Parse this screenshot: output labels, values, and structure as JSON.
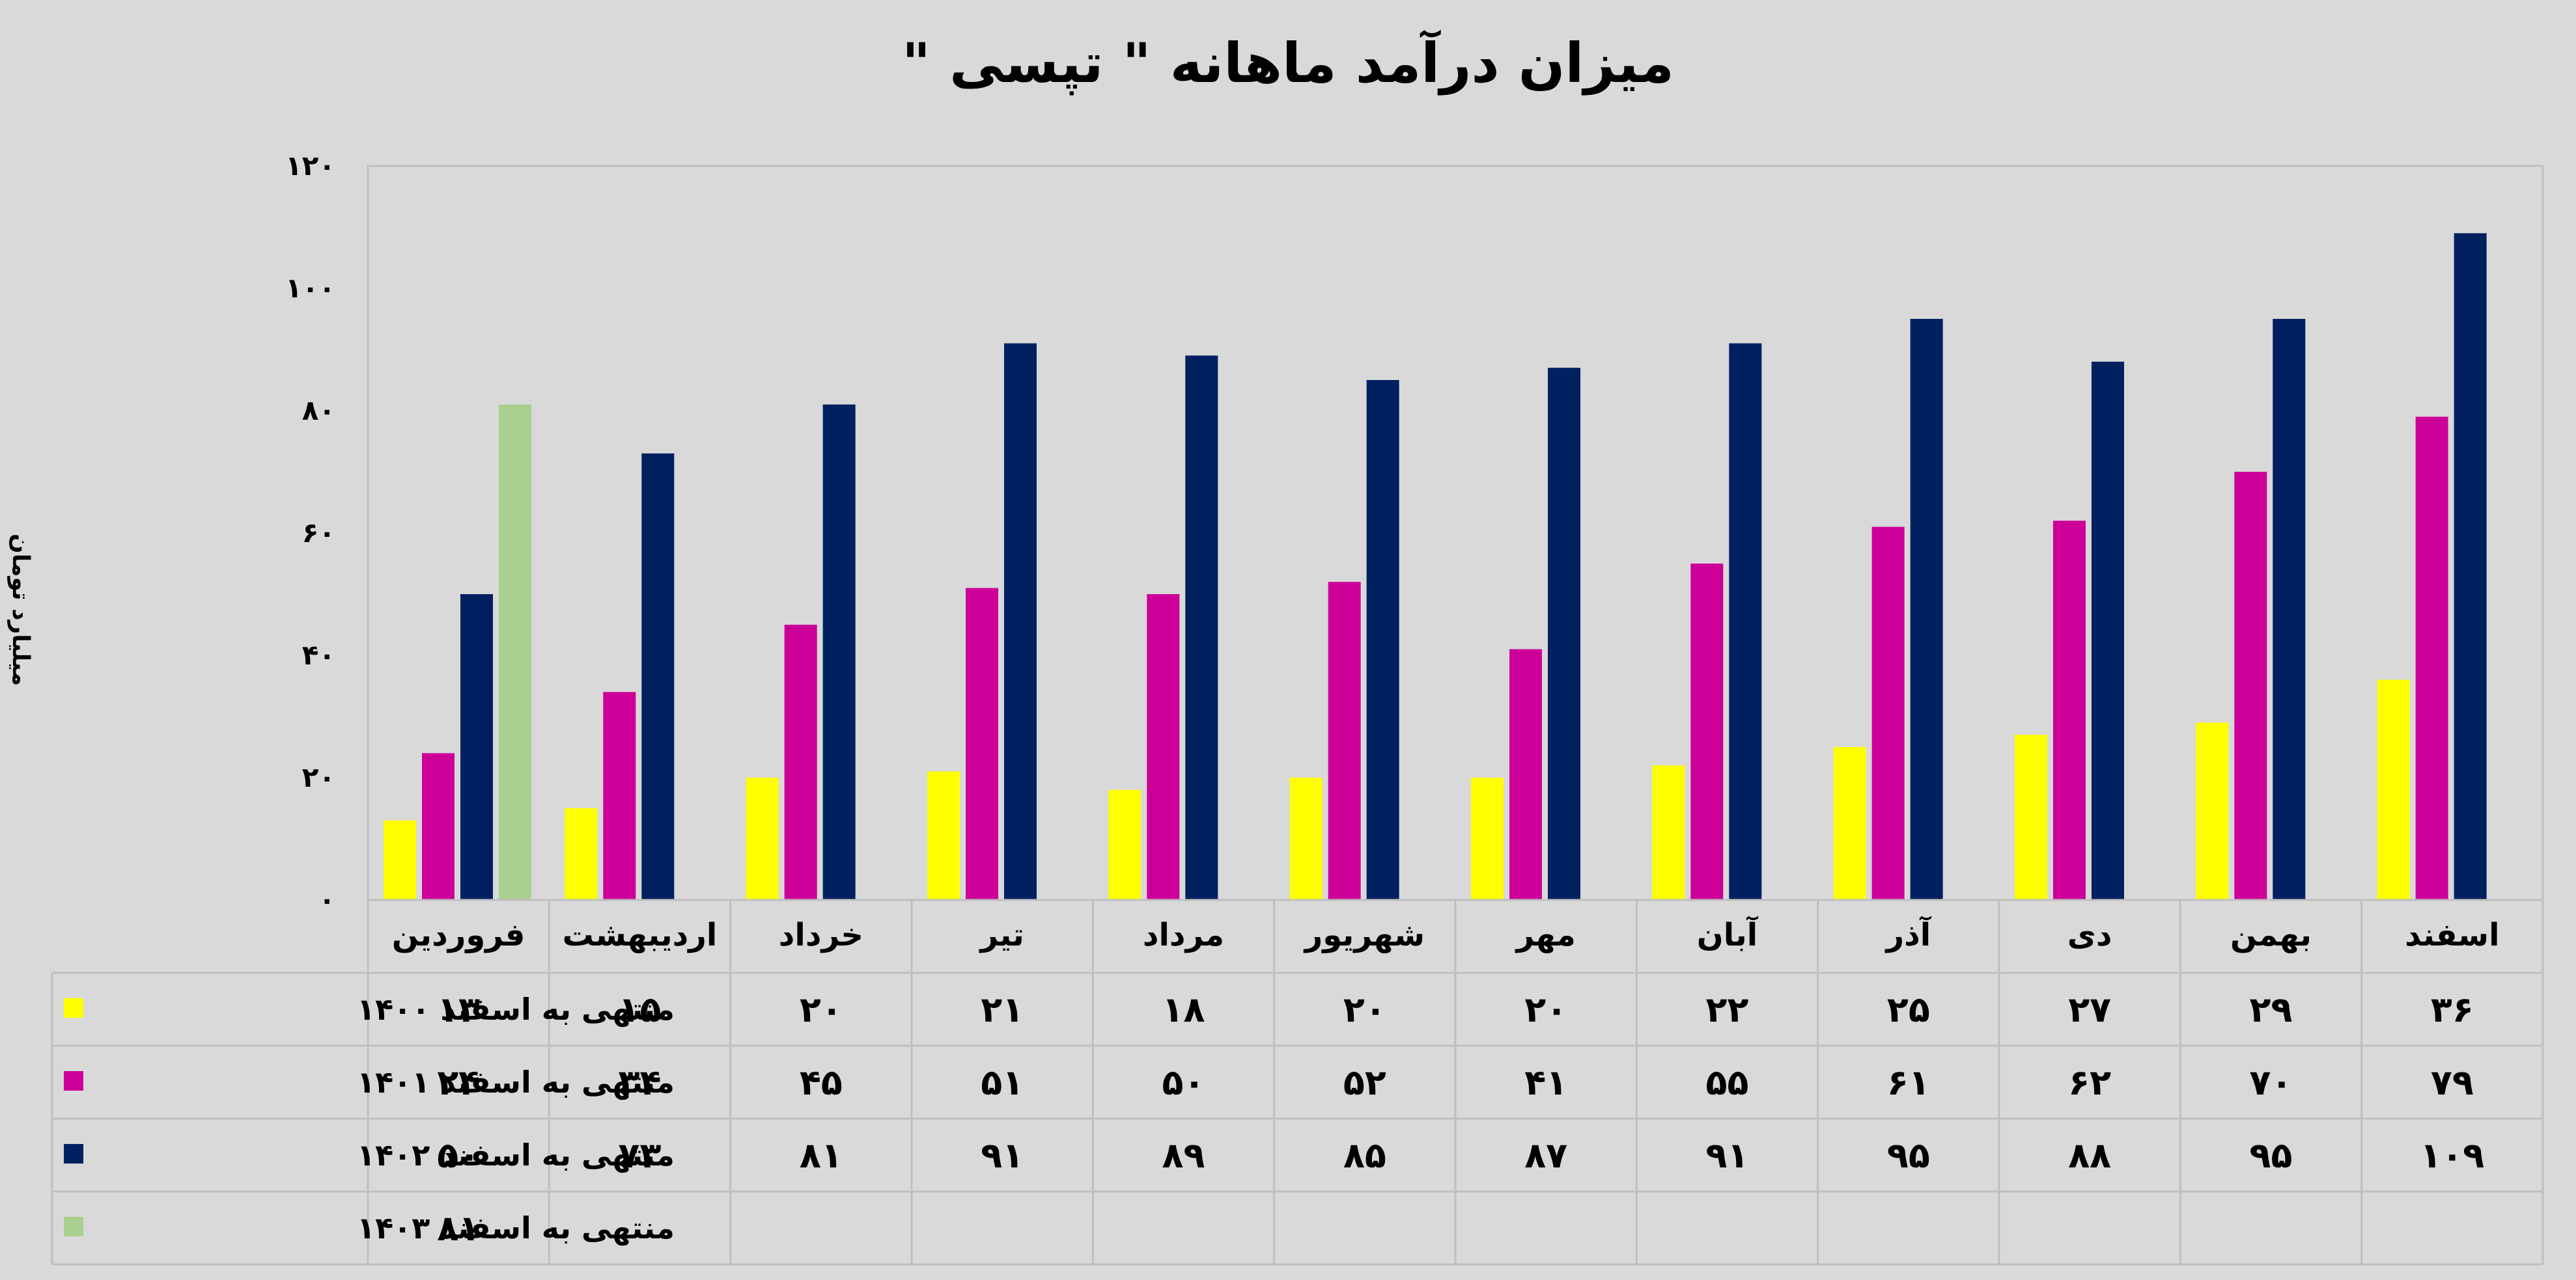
{
  "chart_data": {
    "type": "bar",
    "title": "میزان درآمد ماهانه \" تپسی \"",
    "ylabel": "میلیارد تومان",
    "xlabel": "",
    "ylim": [
      0,
      120
    ],
    "yticks": [
      0,
      20,
      40,
      60,
      80,
      100,
      120
    ],
    "ytick_labels": [
      "۰",
      "۲۰",
      "۴۰",
      "۶۰",
      "۸۰",
      "۱۰۰",
      "۱۲۰"
    ],
    "grid": false,
    "legend": "table-left",
    "categories": [
      "فروردین",
      "اردیبهشت",
      "خرداد",
      "تیر",
      "مرداد",
      "شهریور",
      "مهر",
      "آبان",
      "آذر",
      "دی",
      "بهمن",
      "اسفند"
    ],
    "series": [
      {
        "name": "منتهی به اسفند ۱۴۰۰",
        "color": "#ffff00",
        "values": [
          13,
          15,
          20,
          21,
          18,
          20,
          20,
          22,
          25,
          27,
          29,
          36
        ],
        "labels": [
          "۱۳",
          "۱۵",
          "۲۰",
          "۲۱",
          "۱۸",
          "۲۰",
          "۲۰",
          "۲۲",
          "۲۵",
          "۲۷",
          "۲۹",
          "۳۶"
        ]
      },
      {
        "name": "منتهی به اسفند ۱۴۰۱",
        "color": "#cc0099",
        "values": [
          24,
          34,
          45,
          51,
          50,
          52,
          41,
          55,
          61,
          62,
          70,
          79
        ],
        "labels": [
          "۲۴",
          "۳۴",
          "۴۵",
          "۵۱",
          "۵۰",
          "۵۲",
          "۴۱",
          "۵۵",
          "۶۱",
          "۶۲",
          "۷۰",
          "۷۹"
        ]
      },
      {
        "name": "منتهی به اسفند ۱۴۰۲",
        "color": "#002060",
        "values": [
          50,
          73,
          81,
          91,
          89,
          85,
          87,
          91,
          95,
          88,
          95,
          109
        ],
        "labels": [
          "۵۰",
          "۷۳",
          "۸۱",
          "۹۱",
          "۸۹",
          "۸۵",
          "۸۷",
          "۹۱",
          "۹۵",
          "۸۸",
          "۹۵",
          "۱۰۹"
        ]
      },
      {
        "name": "منتهی به اسفند ۱۴۰۳",
        "color": "#a9d08e",
        "values": [
          81,
          null,
          null,
          null,
          null,
          null,
          null,
          null,
          null,
          null,
          null,
          null
        ],
        "labels": [
          "۸۱",
          "",
          "",
          "",
          "",
          "",
          "",
          "",
          "",
          "",
          "",
          ""
        ]
      }
    ]
  }
}
